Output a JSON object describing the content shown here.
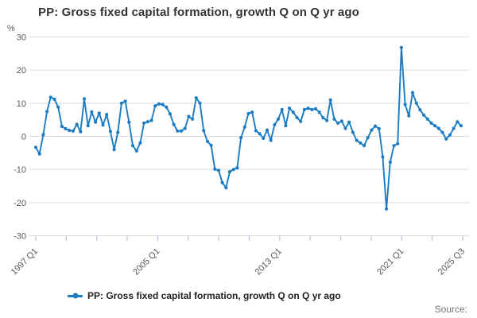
{
  "page": {
    "title": "PP: Gross fixed capital formation, growth Q on Q yr ago",
    "source_label": "Source:"
  },
  "chart": {
    "unit_label": "%",
    "legend": {
      "label": "PP: Gross fixed capital formation, growth Q on Q yr ago"
    },
    "colors": {
      "line": "#1b7cc2",
      "grid": "#d9d9d9",
      "axis": "#b3c2d8",
      "muted_text": "#595959",
      "title_text": "#333333",
      "legend_text": "#222222",
      "source_text": "#757575"
    },
    "y_axis": {
      "min": -30,
      "max": 30,
      "tick_interval": 10,
      "tick_labels": [
        "30",
        "20",
        "10",
        "0",
        "-10",
        "-20",
        "-30"
      ]
    },
    "x_axis": {
      "tick_count": 15,
      "labeled_ticks": [
        {
          "tick_index": 0,
          "label": "1997 Q1"
        },
        {
          "tick_index": 4,
          "label": "2005 Q1"
        },
        {
          "tick_index": 8,
          "label": "2013 Q1"
        },
        {
          "tick_index": 12,
          "label": "2021 Q1"
        },
        {
          "tick_index": 14,
          "label": "2025 Q3"
        }
      ]
    }
  },
  "chart_data": {
    "type": "line",
    "title": "PP: Gross fixed capital formation, growth Q on Q yr ago",
    "ylabel": "%",
    "ylim": [
      -30,
      30
    ],
    "grid": true,
    "legend_position": "bottom",
    "frequency": "quarterly",
    "x_start": "1997 Q1",
    "x_end": "2025 Q3",
    "markers": true,
    "values": [
      -3.3,
      -5.3,
      0.5,
      7.5,
      11.8,
      11.2,
      8.8,
      3.0,
      2.3,
      1.8,
      1.6,
      3.6,
      1.4,
      11.3,
      3.2,
      7.4,
      4.3,
      7.0,
      3.4,
      6.6,
      1.5,
      -4.0,
      1.2,
      10.0,
      10.6,
      4.3,
      -2.8,
      -4.4,
      -2.0,
      4.0,
      4.4,
      4.8,
      9.2,
      9.8,
      9.6,
      8.8,
      6.8,
      3.6,
      1.6,
      1.6,
      2.4,
      6.0,
      5.2,
      11.6,
      10.0,
      1.7,
      -1.5,
      -2.7,
      -9.9,
      -10.3,
      -14.0,
      -15.5,
      -10.7,
      -10.0,
      -9.5,
      -0.4,
      2.8,
      6.9,
      7.3,
      1.7,
      0.8,
      -0.6,
      1.9,
      -1.2,
      3.5,
      5.2,
      8.1,
      3.2,
      8.5,
      7.3,
      5.7,
      4.5,
      8.1,
      8.5,
      8.1,
      8.3,
      7.3,
      5.6,
      4.8,
      11.0,
      5.2,
      4.0,
      4.6,
      2.4,
      4.3,
      1.2,
      -1.2,
      -2.0,
      -2.8,
      -0.4,
      1.9,
      3.1,
      2.3,
      -6.2,
      -21.9,
      -7.8,
      -2.8,
      -2.2,
      26.8,
      9.6,
      6.2,
      13.2,
      10.0,
      8.0,
      6.4,
      5.2,
      4.0,
      3.2,
      2.4,
      1.2,
      -0.8,
      0.4,
      2.4,
      4.4,
      3.2
    ]
  }
}
